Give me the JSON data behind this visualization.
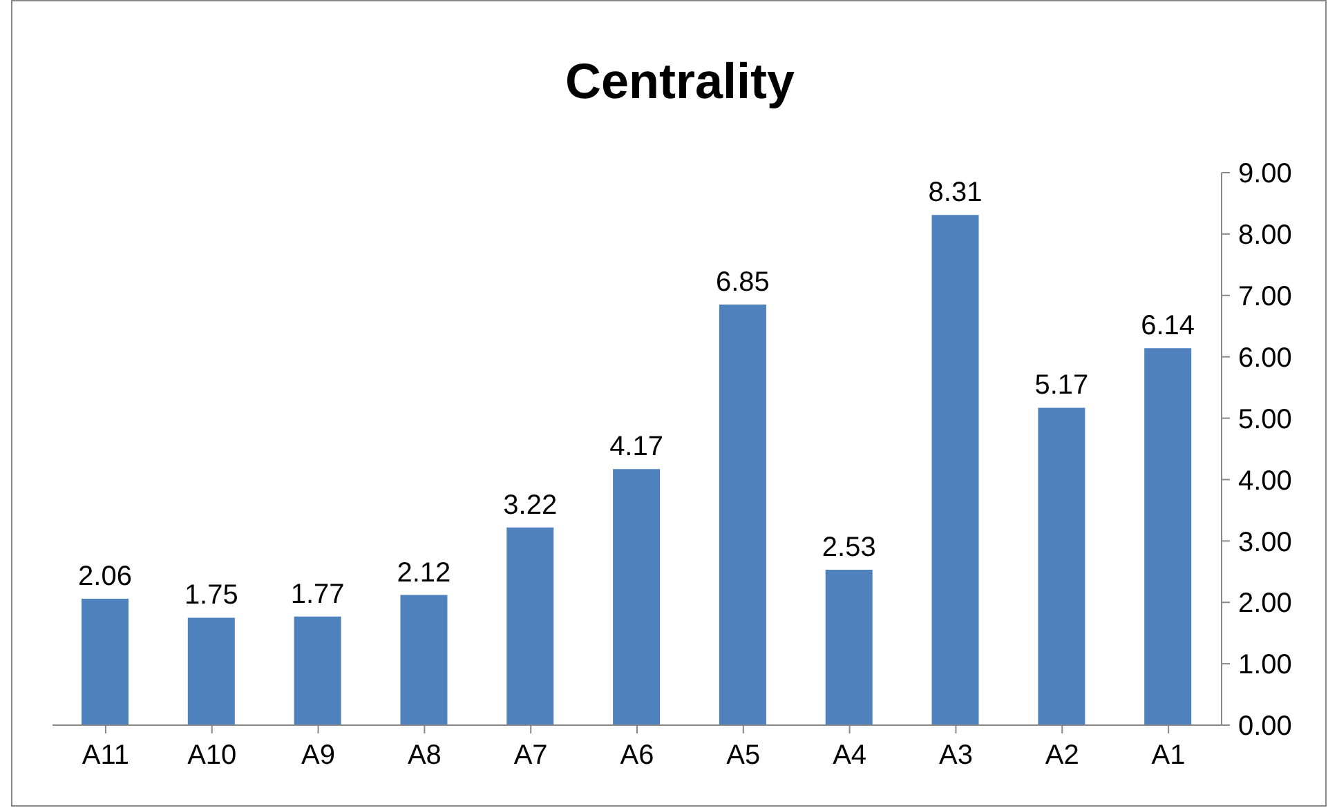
{
  "chart_data": {
    "type": "bar",
    "title": "Centrality",
    "categories": [
      "A11",
      "A10",
      "A9",
      "A8",
      "A7",
      "A6",
      "A5",
      "A4",
      "A3",
      "A2",
      "A1"
    ],
    "values": [
      2.06,
      1.75,
      1.77,
      2.12,
      3.22,
      4.17,
      6.85,
      2.53,
      8.31,
      5.17,
      6.14
    ],
    "color": "#4f81bd",
    "ylim": [
      0,
      9
    ],
    "yticks": [
      {
        "value": 0,
        "label": "0.00"
      },
      {
        "value": 1,
        "label": "1.00"
      },
      {
        "value": 2,
        "label": "2.00"
      },
      {
        "value": 3,
        "label": "3.00"
      },
      {
        "value": 4,
        "label": "4.00"
      },
      {
        "value": 5,
        "label": "5.00"
      },
      {
        "value": 6,
        "label": "6.00"
      },
      {
        "value": 7,
        "label": "7.00"
      },
      {
        "value": 8,
        "label": "8.00"
      },
      {
        "value": 9,
        "label": "9.00"
      }
    ],
    "data_labels": true,
    "grid": false,
    "legend": false
  }
}
